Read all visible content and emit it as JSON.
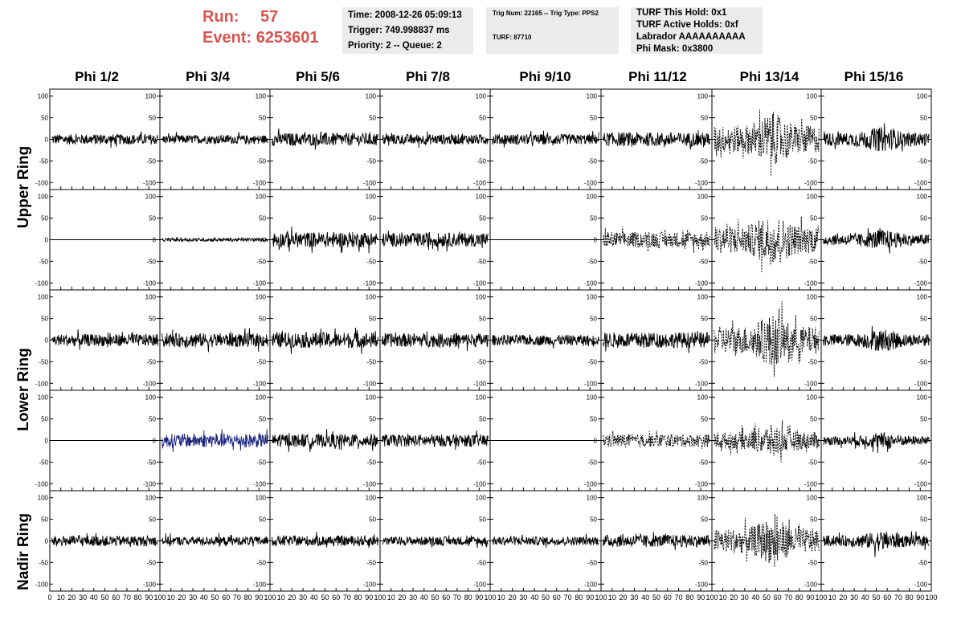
{
  "header": {
    "run_label": "Run:",
    "run_value": "57",
    "event_label": "Event:",
    "event_value": "6253601",
    "time_line": "Time: 2008-12-26 05:09:13",
    "trigger_line": "Trigger: 749.998837 ms",
    "priority_line": "Priority: 2 -- Queue: 2",
    "trig_num_line": "Trig Num: 22165 -- Trig Type: PPS2",
    "turf_line": "TURF: 87710",
    "turf_hold_line": "TURF This Hold: 0x1",
    "turf_active_line": "TURF Active Holds: 0xf",
    "labrador_line": "Labrador AAAAAAAAAA",
    "phi_mask_line": "Phi Mask: 0x3800"
  },
  "columns": [
    "Phi 1/2",
    "Phi 3/4",
    "Phi 5/6",
    "Phi 7/8",
    "Phi 9/10",
    "Phi 11/12",
    "Phi 13/14",
    "Phi 15/16"
  ],
  "ring_labels": [
    "Upper Ring",
    "Lower Ring",
    "Nadir Ring"
  ],
  "colors": {
    "trace": "#000000",
    "highlight_trace": "#1a237e",
    "header_red": "#d9534f",
    "box_bg": "#ebebeb"
  },
  "chart_data": {
    "type": "line",
    "xlim": [
      0,
      100
    ],
    "ylim": [
      -105,
      105
    ],
    "x_ticks": [
      "0",
      "10",
      "20",
      "30",
      "40",
      "50",
      "60",
      "70",
      "80",
      "90",
      "100"
    ],
    "y_ticks": [
      "100",
      "50",
      "0",
      "-50",
      "-100"
    ],
    "grid": false,
    "panel_rows": 5,
    "panel_cols": 8,
    "panel_styles": [
      [
        "solid",
        "solid",
        "solid",
        "solid",
        "solid",
        "solid",
        "dashed",
        "solid"
      ],
      [
        "flat",
        "solid",
        "solid",
        "solid",
        "flat",
        "dashed",
        "dashed",
        "solid"
      ],
      [
        "solid",
        "solid",
        "solid",
        "solid",
        "solid",
        "solid",
        "dashed",
        "solid"
      ],
      [
        "flat",
        "blue",
        "solid",
        "solid",
        "flat",
        "dashed",
        "dashed",
        "solid"
      ],
      [
        "solid",
        "solid",
        "solid",
        "solid",
        "solid",
        "solid",
        "dashed",
        "solid"
      ]
    ],
    "panel_amplitudes": [
      [
        12,
        10,
        15,
        12,
        12,
        16,
        45,
        22
      ],
      [
        0,
        4,
        18,
        16,
        0,
        18,
        45,
        18
      ],
      [
        14,
        16,
        18,
        16,
        12,
        18,
        45,
        20
      ],
      [
        0,
        16,
        15,
        14,
        0,
        15,
        28,
        15
      ],
      [
        12,
        10,
        12,
        10,
        10,
        14,
        40,
        18
      ]
    ]
  }
}
